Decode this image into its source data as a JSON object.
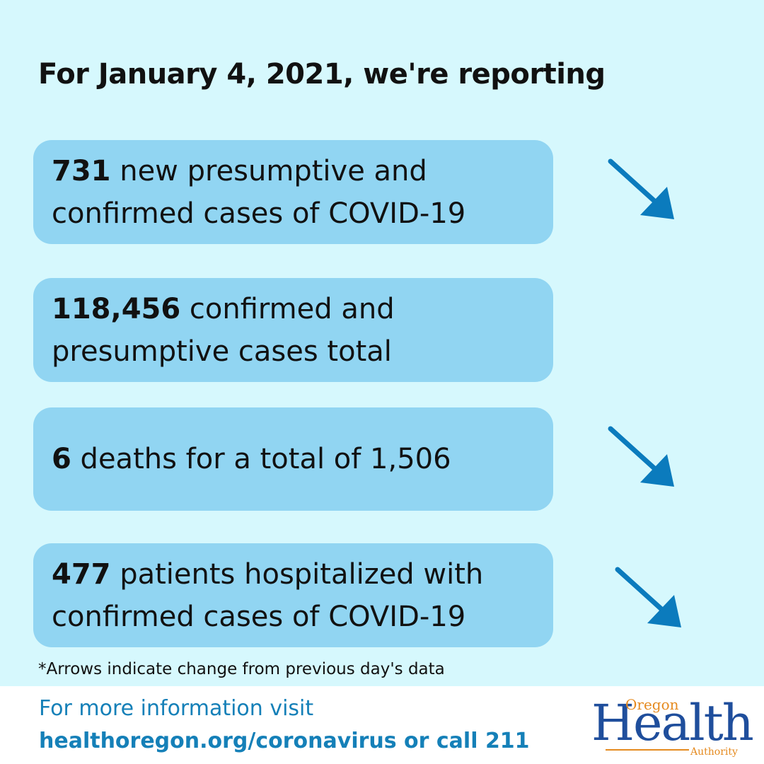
{
  "heading": "For January 4, 2021, we're reporting",
  "stats": [
    {
      "number": "731",
      "text": " new presumptive and confirmed cases of COVID-19",
      "trend": "down"
    },
    {
      "number": "118,456",
      "text": " confirmed and presumptive cases total",
      "trend": "none"
    },
    {
      "number": "6",
      "text": " deaths for a total of 1,506",
      "trend": "down"
    },
    {
      "number": "477",
      "text": " patients hospitalized with confirmed cases of COVID-19",
      "trend": "down"
    }
  ],
  "footnote": "*Arrows indicate change from previous day's data",
  "footer": {
    "line1": "For more information visit",
    "line2": "healthoregon.org/coronavirus or call 211"
  },
  "logo": {
    "top": "Oregon",
    "main": "Health",
    "bottom": "Authority"
  },
  "colors": {
    "background": "#d6f8fd",
    "card": "#91d5f2",
    "arrow": "#0b7bbd",
    "link": "#1580b8"
  }
}
